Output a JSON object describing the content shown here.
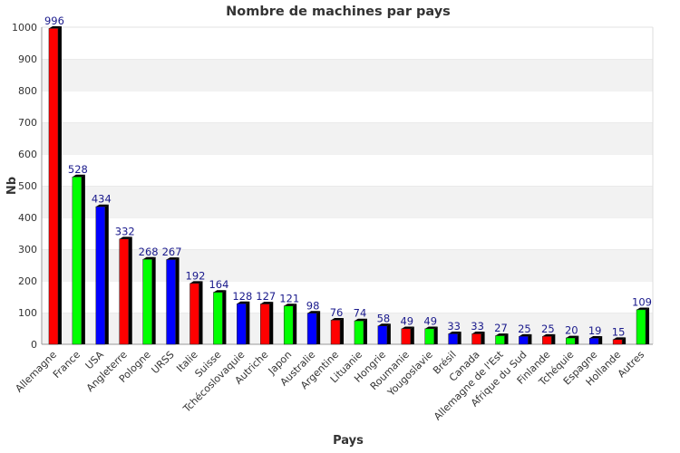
{
  "chart_data": {
    "type": "bar",
    "title": "Nombre de machines par pays",
    "xlabel": "Pays",
    "ylabel": "Nb",
    "ylim": [
      0,
      1000
    ],
    "yticks": [
      0,
      100,
      200,
      300,
      400,
      500,
      600,
      700,
      800,
      900,
      1000
    ],
    "grid": "horizontal bands",
    "categories": [
      "Allemagne",
      "France",
      "USA",
      "Angleterre",
      "Pologne",
      "URSS",
      "Italie",
      "Suisse",
      "Tchécoslovaquie",
      "Autriche",
      "Japon",
      "Australie",
      "Argentine",
      "Lituanie",
      "Hongrie",
      "Roumanie",
      "Yougoslavie",
      "Brésil",
      "Canada",
      "Allemagne de l'Est",
      "Afrique du Sud",
      "Finlande",
      "Tchéquie",
      "Espagne",
      "Hollande",
      "Autres"
    ],
    "values": [
      996,
      528,
      434,
      332,
      268,
      267,
      192,
      164,
      128,
      127,
      121,
      98,
      76,
      74,
      58,
      49,
      49,
      33,
      33,
      27,
      25,
      25,
      20,
      19,
      15,
      109
    ],
    "colors": [
      "#ff0000",
      "#00ff00",
      "#0000ff",
      "#ff0000",
      "#00ff00",
      "#0000ff",
      "#ff0000",
      "#00ff00",
      "#0000ff",
      "#ff0000",
      "#00ff00",
      "#0000ff",
      "#ff0000",
      "#00ff00",
      "#0000ff",
      "#ff0000",
      "#00ff00",
      "#0000ff",
      "#ff0000",
      "#00ff00",
      "#0000ff",
      "#ff0000",
      "#00ff00",
      "#0000ff",
      "#ff0000",
      "#00ff00"
    ]
  }
}
